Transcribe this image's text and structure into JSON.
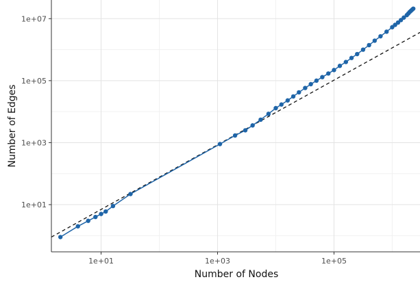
{
  "chart_data": {
    "type": "line",
    "xlabel": "Number of Nodes",
    "ylabel": "Number of Edges",
    "x_scale": "log10",
    "y_scale": "log10",
    "xlim": [
      1.4,
      3000000
    ],
    "ylim": [
      0.3,
      40000000
    ],
    "x_ticks": [
      10,
      1000,
      100000
    ],
    "x_tick_labels": [
      "1e+01",
      "1e+03",
      "1e+05"
    ],
    "y_ticks": [
      10,
      1000,
      100000,
      10000000
    ],
    "y_tick_labels": [
      "1e+01",
      "1e+03",
      "1e+05",
      "1e+07"
    ],
    "grid": true,
    "legend": "none",
    "colors": {
      "series": "#1f65a8",
      "reference": "#111111",
      "grid_major": "#e3e3e3",
      "grid_minor": "#f1f1f1"
    },
    "reference_line": {
      "style": "dashed",
      "points": [
        [
          1.4,
          0.9
        ],
        [
          3000000,
          3600000
        ]
      ]
    },
    "series": [
      {
        "x": [
          2,
          4,
          6,
          8,
          10,
          12,
          16,
          32,
          1100,
          2000,
          3000,
          4000,
          5500,
          7500,
          10000,
          12500,
          16000,
          20000,
          25000,
          32000,
          40000,
          50000,
          63000,
          80000,
          100000,
          126000,
          160000,
          200000,
          250000,
          316000,
          400000,
          500000,
          630000,
          800000,
          1000000,
          1120000,
          1260000,
          1410000,
          1580000,
          1780000,
          1900000,
          2000000,
          2100000,
          2200000,
          2300000
        ],
        "y": [
          0.9,
          2,
          3,
          4,
          5,
          6,
          9,
          22,
          900,
          1700,
          2500,
          3600,
          5500,
          8500,
          13000,
          17000,
          23000,
          31000,
          42000,
          58000,
          77000,
          100000,
          130000,
          170000,
          220000,
          300000,
          400000,
          540000,
          720000,
          1000000,
          1400000,
          1950000,
          2700000,
          3800000,
          5300000,
          6300000,
          7500000,
          9000000,
          10800000,
          13000000,
          14800000,
          16500000,
          18000000,
          19500000,
          21000000
        ]
      }
    ]
  }
}
